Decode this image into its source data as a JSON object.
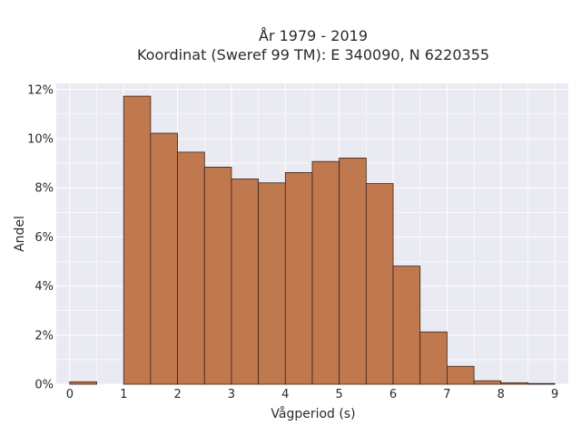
{
  "chart_data": {
    "type": "bar",
    "title_line1": "År 1979 - 2019",
    "title_line2": "Koordinat (Sweref 99 TM): E 340090, N 6220355",
    "xlabel": "Vågperiod (s)",
    "ylabel": "Andel",
    "bin_width": 0.5,
    "bins": [
      {
        "x0": 0.0,
        "value": 0.001
      },
      {
        "x0": 0.5,
        "value": 0.0
      },
      {
        "x0": 1.0,
        "value": 0.1173
      },
      {
        "x0": 1.5,
        "value": 0.1022
      },
      {
        "x0": 2.0,
        "value": 0.0945
      },
      {
        "x0": 2.5,
        "value": 0.0884
      },
      {
        "x0": 3.0,
        "value": 0.0836
      },
      {
        "x0": 3.5,
        "value": 0.082
      },
      {
        "x0": 4.0,
        "value": 0.0862
      },
      {
        "x0": 4.5,
        "value": 0.0907
      },
      {
        "x0": 5.0,
        "value": 0.0921
      },
      {
        "x0": 5.5,
        "value": 0.0817
      },
      {
        "x0": 6.0,
        "value": 0.0481
      },
      {
        "x0": 6.5,
        "value": 0.0213
      },
      {
        "x0": 7.0,
        "value": 0.0073
      },
      {
        "x0": 7.5,
        "value": 0.0014
      },
      {
        "x0": 8.0,
        "value": 0.0006
      },
      {
        "x0": 8.5,
        "value": 0.0003
      }
    ],
    "xlim": [
      -0.25,
      9.25
    ],
    "ylim": [
      0,
      0.1225
    ],
    "xticks": [
      {
        "value": 0,
        "label": "0"
      },
      {
        "value": 1,
        "label": "1"
      },
      {
        "value": 2,
        "label": "2"
      },
      {
        "value": 3,
        "label": "3"
      },
      {
        "value": 4,
        "label": "4"
      },
      {
        "value": 5,
        "label": "5"
      },
      {
        "value": 6,
        "label": "6"
      },
      {
        "value": 7,
        "label": "7"
      },
      {
        "value": 8,
        "label": "8"
      },
      {
        "value": 9,
        "label": "9"
      }
    ],
    "yticks": [
      {
        "value": 0.0,
        "label": "0%"
      },
      {
        "value": 0.02,
        "label": "2%"
      },
      {
        "value": 0.04,
        "label": "4%"
      },
      {
        "value": 0.06,
        "label": "6%"
      },
      {
        "value": 0.08,
        "label": "8%"
      },
      {
        "value": 0.1,
        "label": "10%"
      },
      {
        "value": 0.12,
        "label": "12%"
      }
    ],
    "grid": true,
    "colors": {
      "bar_fill": "#c0784f",
      "bar_edge": "#3a2418",
      "plot_bg": "#eaeaf2",
      "grid": "#ffffff"
    }
  }
}
